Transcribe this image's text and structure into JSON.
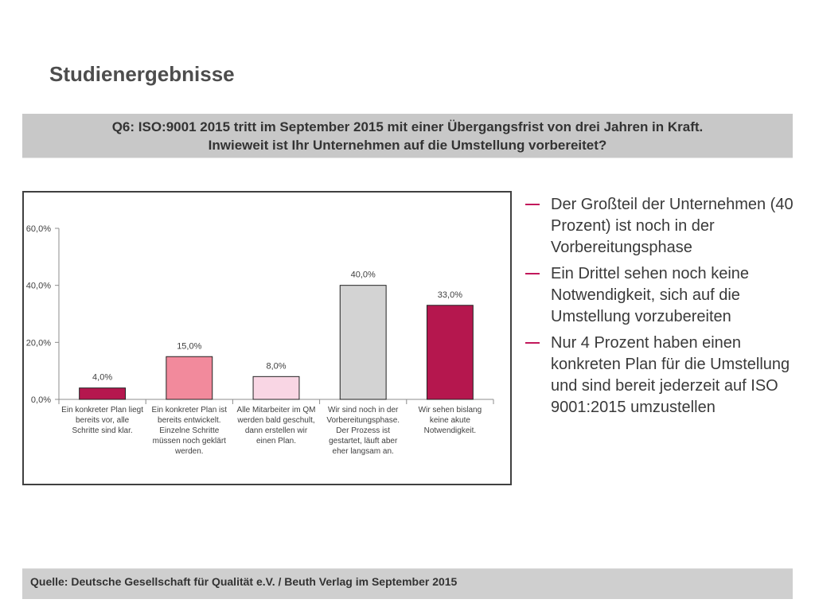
{
  "title": "Studienergebnisse",
  "question": {
    "line1": "Q6: ISO:9001 2015 tritt im September 2015 mit einer Übergangsfrist von drei Jahren in Kraft.",
    "line2": "Inwieweit ist Ihr Unternehmen auf die Umstellung vorbereitet?"
  },
  "bullets": [
    "Der Großteil der Unternehmen (40 Prozent) ist noch in der Vorbereitungsphase",
    "Ein Drittel sehen noch keine Notwendigkeit, sich auf die Umstellung vorzubereiten",
    "Nur 4 Prozent haben einen konkreten Plan für die Umstellung und sind bereit jederzeit auf ISO 9001:2015 umzustellen"
  ],
  "source": "Quelle: Deutsche Gesellschaft für Qualität e.V. / Beuth Verlag im September  2015",
  "chart_data": {
    "type": "bar",
    "categories": [
      [
        "Ein konkreter Plan liegt",
        "bereits vor, alle",
        "Schritte sind klar."
      ],
      [
        "Ein konkreter Plan ist",
        "bereits entwickelt.",
        "Einzelne Schritte",
        "müssen noch geklärt",
        "werden."
      ],
      [
        "Alle Mitarbeiter im QM",
        "werden bald geschult,",
        "dann erstellen wir",
        "einen Plan."
      ],
      [
        "Wir sind noch in der",
        "Vorbereitungsphase.",
        "Der Prozess ist",
        "gestartet, läuft aber",
        "eher langsam an."
      ],
      [
        "Wir sehen bislang",
        "keine akute",
        "Notwendigkeit."
      ]
    ],
    "values": [
      4.0,
      15.0,
      8.0,
      40.0,
      33.0
    ],
    "value_labels": [
      "4,0%",
      "15,0%",
      "8,0%",
      "40,0%",
      "33,0%"
    ],
    "bar_colors": [
      "#b5174e",
      "#f28a9c",
      "#f9d6e4",
      "#d3d3d3",
      "#b5174e"
    ],
    "yticks": [
      0,
      20,
      40,
      60
    ],
    "ytick_labels": [
      "0,0%",
      "20,0%",
      "40,0%",
      "60,0%"
    ],
    "ylim": [
      0,
      60
    ],
    "grid": false,
    "legend": "none"
  }
}
